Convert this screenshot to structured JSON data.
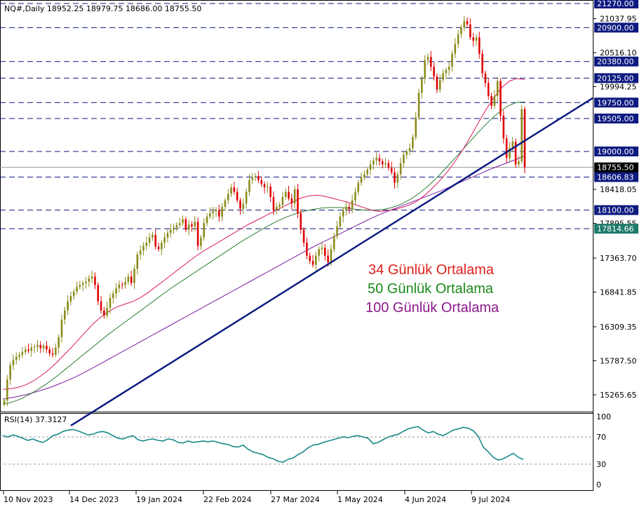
{
  "header": {
    "symbol_line": "NQ#,Daily  18952.25 18979.75 18686.00 18755.50"
  },
  "legend": {
    "ma34": {
      "text": "34 Günlük Ortalama",
      "color": "#e0201b"
    },
    "ma50": {
      "text": "50 Günlük Ortalama",
      "color": "#1a8a1a"
    },
    "ma100": {
      "text": "100 Günlük Ortalama",
      "color": "#8b1a8b"
    }
  },
  "rsi_panel": {
    "title": "RSI(14) 37.3127",
    "levels": [
      "100",
      "70",
      "30",
      "0"
    ]
  },
  "colors": {
    "bull": "#8a8a1a",
    "bear": "#e00000",
    "ma34": "#d81b60",
    "ma50": "#2e7d32",
    "ma100": "#7b1fa2",
    "trendline": "#0d1a80",
    "level_line": "#0d1a80",
    "level_box": "#0d1a80",
    "last_price_box": "#000000",
    "rsi": "#1a8a8a"
  },
  "chart_data": [
    {
      "type": "candlestick",
      "title": "NQ#,Daily",
      "ohlc_last": {
        "open": 18952.25,
        "high": 18979.75,
        "low": 18686.0,
        "close": 18755.5
      },
      "x_tick_labels": [
        "10 Nov 2023",
        "14 Dec 2023",
        "19 Jan 2024",
        "22 Feb 2024",
        "27 Mar 2024",
        "1 May 2024",
        "4 Jun 2024",
        "9 Jul 2024"
      ],
      "y_tick_labels": [
        "21037.95",
        "20516.10",
        "19994.25",
        "18418.05",
        "17895.55",
        "17363.70",
        "16841.85",
        "16309.35",
        "15787.50",
        "15265.65"
      ],
      "ylim": [
        15100,
        21300
      ],
      "horizontal_levels": [
        "21270.00",
        "20900.00",
        "20380.00",
        "20125.00",
        "19750.00",
        "19505.00",
        "19000.00",
        "18606.83",
        "18100.00",
        "17814.66"
      ],
      "last_price": "18755.50",
      "closes": [
        15180,
        15500,
        15720,
        15800,
        15850,
        15880,
        15920,
        15960,
        15940,
        15990,
        16000,
        16030,
        15980,
        16020,
        15960,
        15900,
        15880,
        15990,
        16150,
        16420,
        16560,
        16700,
        16780,
        16850,
        16920,
        16950,
        16980,
        17000,
        17050,
        17080,
        16950,
        16700,
        16560,
        16480,
        16600,
        16750,
        16820,
        16900,
        16960,
        16950,
        17000,
        17080,
        16980,
        17200,
        17420,
        17480,
        17550,
        17600,
        17680,
        17720,
        17540,
        17500,
        17600,
        17680,
        17750,
        17800,
        17830,
        17870,
        17900,
        17960,
        17800,
        17880,
        17850,
        17920,
        17550,
        17680,
        17900,
        18000,
        18050,
        18080,
        18100,
        18000,
        18150,
        18250,
        18350,
        18450,
        18380,
        18250,
        18120,
        18200,
        18380,
        18560,
        18600,
        18620,
        18560,
        18500,
        18450,
        18460,
        18300,
        18100,
        18150,
        18180,
        18300,
        18380,
        18280,
        18200,
        18420,
        18050,
        17800,
        17600,
        17400,
        17320,
        17260,
        17400,
        17500,
        17520,
        17400,
        17300,
        17500,
        17700,
        17850,
        18000,
        18100,
        18150,
        18120,
        18250,
        18380,
        18520,
        18600,
        18650,
        18720,
        18800,
        18860,
        18900,
        18850,
        18800,
        18820,
        18750,
        18680,
        18520,
        18650,
        18820,
        18950,
        19000,
        19050,
        19220,
        19520,
        19900,
        20120,
        20400,
        20450,
        20300,
        20150,
        19950,
        20100,
        20200,
        20250,
        20300,
        20500,
        20650,
        20800,
        20900,
        21000,
        20950,
        20750,
        20700,
        20750,
        20500,
        20200,
        20050,
        19850,
        19700,
        19850,
        20080,
        19550,
        19200,
        18900,
        19050,
        19150,
        18800,
        18850,
        19650,
        18755.5
      ],
      "ma34_series": [
        15350,
        15360,
        15380,
        15420,
        15480,
        15560,
        15650,
        15760,
        15880,
        16000,
        16130,
        16260,
        16380,
        16480,
        16560,
        16620,
        16660,
        16700,
        16760,
        16840,
        16930,
        17020,
        17110,
        17200,
        17290,
        17380,
        17460,
        17530,
        17600,
        17670,
        17740,
        17810,
        17880,
        17940,
        18000,
        18060,
        18120,
        18180,
        18240,
        18290,
        18320,
        18330,
        18310,
        18280,
        18250,
        18220,
        18180,
        18140,
        18100,
        18080,
        18090,
        18110,
        18140,
        18180,
        18240,
        18330,
        18440,
        18560,
        18700,
        18860,
        19040,
        19240,
        19450,
        19650,
        19830,
        19980,
        20080,
        20120,
        20100
      ],
      "ma50_series": [
        15120,
        15150,
        15200,
        15270,
        15350,
        15440,
        15540,
        15650,
        15760,
        15870,
        15980,
        16090,
        16200,
        16300,
        16400,
        16500,
        16600,
        16700,
        16800,
        16900,
        16990,
        17080,
        17170,
        17260,
        17350,
        17440,
        17530,
        17620,
        17700,
        17780,
        17860,
        17930,
        17990,
        18040,
        18080,
        18110,
        18130,
        18140,
        18140,
        18130,
        18110,
        18100,
        18100,
        18110,
        18140,
        18190,
        18260,
        18350,
        18460,
        18590,
        18730,
        18880,
        19030,
        19180,
        19330,
        19470,
        19590,
        19690,
        19750,
        19760
      ],
      "ma100_series": [
        15200,
        15230,
        15270,
        15320,
        15380,
        15450,
        15530,
        15620,
        15720,
        15820,
        15920,
        16020,
        16120,
        16220,
        16320,
        16420,
        16520,
        16620,
        16720,
        16820,
        16920,
        17020,
        17120,
        17220,
        17320,
        17420,
        17520,
        17610,
        17700,
        17790,
        17880,
        17970,
        18050,
        18120,
        18190,
        18260,
        18330,
        18400,
        18480,
        18560,
        18640,
        18720,
        18790,
        18860,
        18930
      ],
      "trendline": {
        "from": [
          0,
          14900
        ],
        "to": [
          180,
          19550
        ]
      }
    },
    {
      "type": "line",
      "title": "RSI(14) 37.3127",
      "ylim": [
        0,
        100
      ],
      "levels": [
        30,
        70
      ],
      "values": [
        72,
        70,
        73,
        71,
        68,
        65,
        67,
        64,
        62,
        66,
        72,
        74,
        78,
        80,
        81,
        79,
        76,
        73,
        74,
        77,
        78,
        76,
        72,
        68,
        67,
        70,
        72,
        66,
        64,
        66,
        67,
        65,
        64,
        67,
        66,
        62,
        61,
        64,
        62,
        63,
        64,
        63,
        64,
        62,
        60,
        59,
        56,
        55,
        58,
        52,
        48,
        46,
        44,
        40,
        38,
        34,
        33,
        37,
        39,
        44,
        48,
        54,
        58,
        59,
        62,
        64,
        66,
        68,
        70,
        69,
        71,
        72,
        70,
        68,
        60,
        62,
        66,
        70,
        72,
        74,
        78,
        82,
        84,
        85,
        80,
        76,
        78,
        74,
        72,
        76,
        80,
        82,
        84,
        83,
        79,
        71,
        55,
        48,
        40,
        36,
        38,
        42,
        46,
        40,
        37
      ]
    }
  ]
}
